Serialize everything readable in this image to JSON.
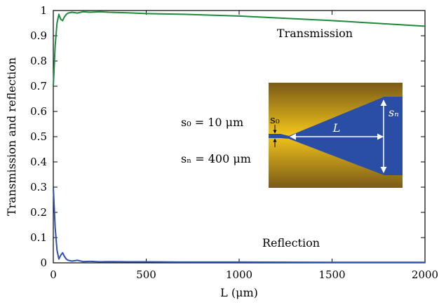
{
  "chart_data": {
    "type": "line",
    "xlabel": "L (μm)",
    "ylabel": "Transmission and reflection",
    "xlim": [
      0,
      2000
    ],
    "ylim": [
      0,
      1
    ],
    "x_ticks": [
      "0",
      "500",
      "1000",
      "1500",
      "2000"
    ],
    "y_ticks": [
      "0",
      "0.1",
      "0.2",
      "0.3",
      "0.4",
      "0.5",
      "0.6",
      "0.7",
      "0.8",
      "0.9",
      "1"
    ],
    "grid": false,
    "series": [
      {
        "name": "Transmission",
        "color": "#1e8a3c",
        "x": [
          0,
          10,
          20,
          30,
          40,
          50,
          60,
          70,
          80,
          100,
          130,
          160,
          200,
          250,
          300,
          400,
          500,
          700,
          1000,
          1500,
          2000
        ],
        "y": [
          0.7,
          0.86,
          0.95,
          0.985,
          0.965,
          0.96,
          0.975,
          0.985,
          0.99,
          0.993,
          0.99,
          0.995,
          0.993,
          0.995,
          0.993,
          0.991,
          0.988,
          0.985,
          0.978,
          0.96,
          0.938
        ]
      },
      {
        "name": "Reflection",
        "color": "#2e4fb3",
        "x": [
          0,
          10,
          20,
          30,
          40,
          50,
          60,
          70,
          80,
          100,
          130,
          160,
          200,
          250,
          300,
          400,
          500,
          700,
          1000,
          1500,
          2000
        ],
        "y": [
          0.3,
          0.14,
          0.05,
          0.015,
          0.03,
          0.04,
          0.025,
          0.015,
          0.01,
          0.007,
          0.01,
          0.005,
          0.006,
          0.004,
          0.005,
          0.004,
          0.004,
          0.003,
          0.003,
          0.002,
          0.002
        ]
      }
    ],
    "annotations": {
      "transmission_label": "Transmission",
      "reflection_label": "Reflection",
      "s0_eq": "s₀ = 10 μm",
      "sn_eq": "sₙ = 400 μm",
      "inset_s0": "s₀",
      "inset_sn": "sₙ",
      "inset_L": "L"
    }
  }
}
